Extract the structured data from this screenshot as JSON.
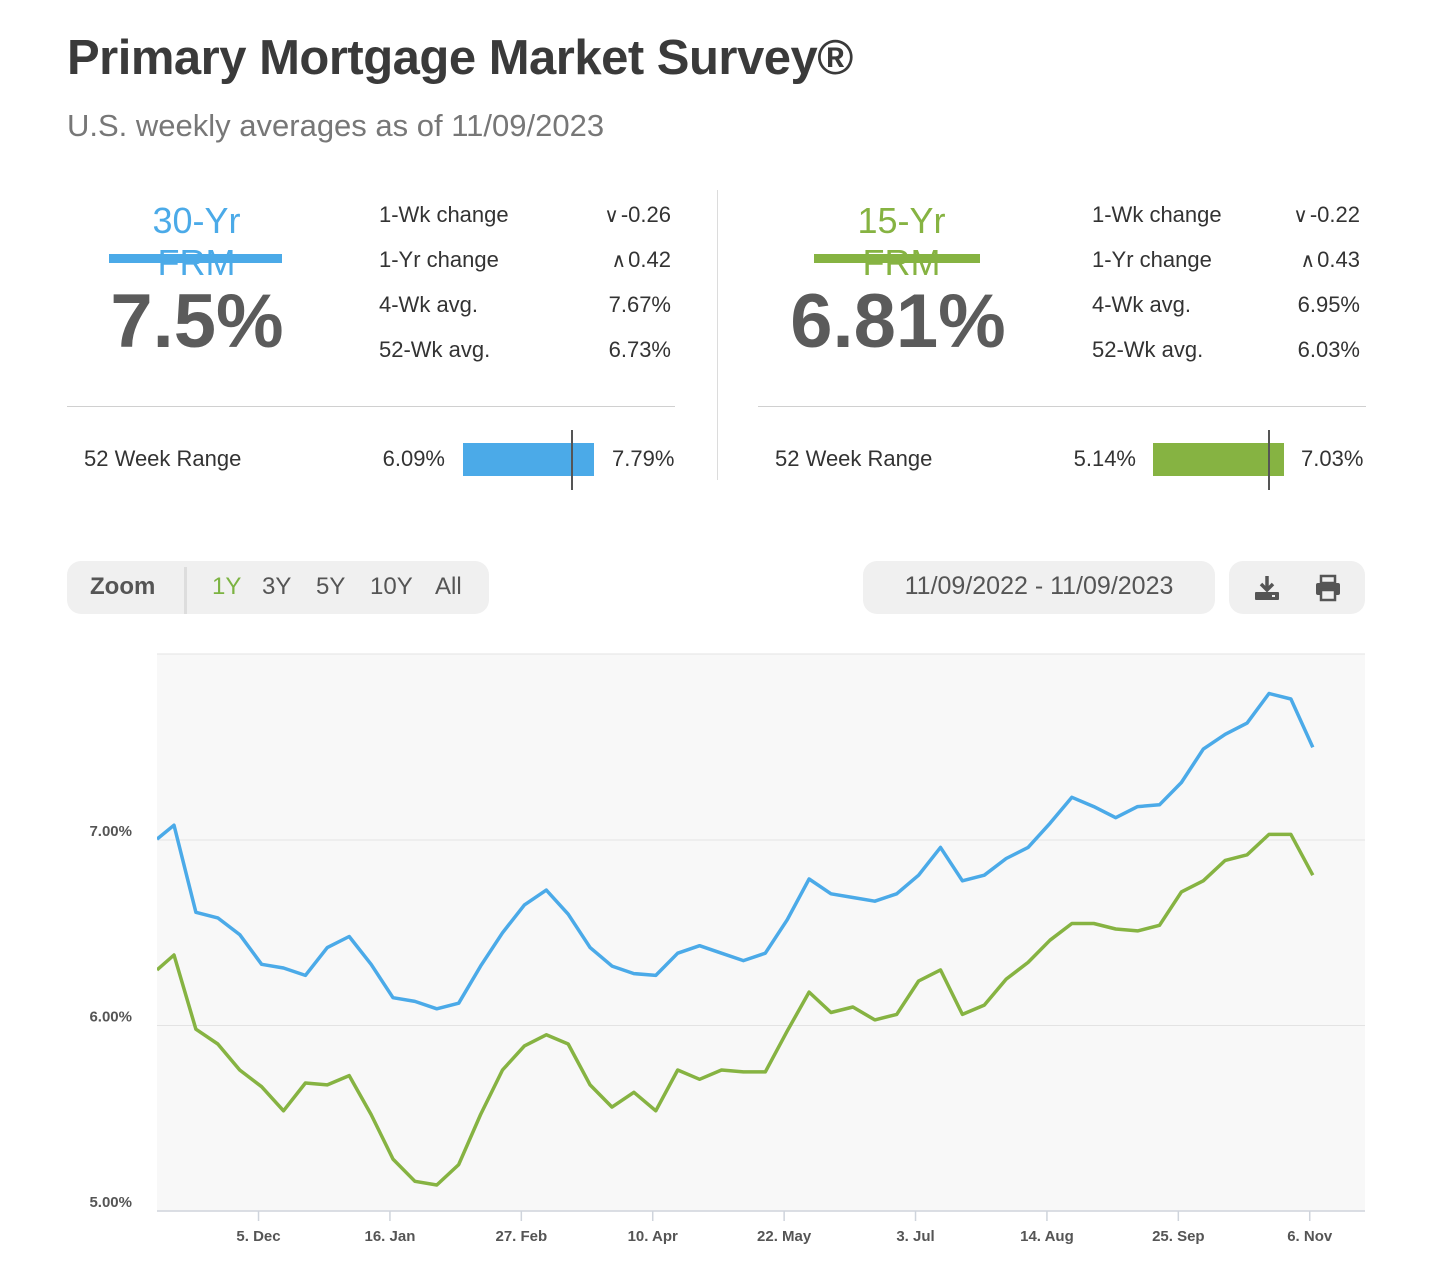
{
  "header": {
    "title": "Primary Mortgage Market Survey®",
    "subtitle": "U.S. weekly averages as of 11/09/2023"
  },
  "colors": {
    "frm30": "#4baae8",
    "frm15": "#86b342",
    "grid": "#e3e3e3",
    "plot_bg": "#f8f8f8"
  },
  "frm30": {
    "name": "30-Yr FRM",
    "rate": "7.5%",
    "stats": [
      {
        "label": "1-Wk change",
        "value": "-0.26",
        "direction": "down"
      },
      {
        "label": "1-Yr change",
        "value": "0.42",
        "direction": "up"
      },
      {
        "label": "4-Wk avg.",
        "value": "7.67%"
      },
      {
        "label": "52-Wk avg.",
        "value": "6.73%"
      }
    ],
    "range_label": "52 Week Range",
    "range_min": "6.09%",
    "range_max": "7.79%",
    "range_current": 7.5,
    "range_lo": 6.09,
    "range_hi": 7.79
  },
  "frm15": {
    "name": "15-Yr FRM",
    "rate": "6.81%",
    "stats": [
      {
        "label": "1-Wk change",
        "value": "-0.22",
        "direction": "down"
      },
      {
        "label": "1-Yr change",
        "value": "0.43",
        "direction": "up"
      },
      {
        "label": "4-Wk avg.",
        "value": "6.95%"
      },
      {
        "label": "52-Wk avg.",
        "value": "6.03%"
      }
    ],
    "range_label": "52 Week Range",
    "range_min": "5.14%",
    "range_max": "7.03%",
    "range_current": 6.81,
    "range_lo": 5.14,
    "range_hi": 7.03
  },
  "controls": {
    "zoom_label": "Zoom",
    "zoom_options": [
      "1Y",
      "3Y",
      "5Y",
      "10Y",
      "All"
    ],
    "zoom_active": "1Y",
    "date_range": "11/09/2022 - 11/09/2023",
    "download_icon": "download-icon",
    "print_icon": "print-icon"
  },
  "chart_data": {
    "type": "line",
    "title": "",
    "xlabel": "",
    "ylabel": "",
    "ylim": [
      5.0,
      8.0
    ],
    "yticks": [
      "5.00%",
      "6.00%",
      "7.00%"
    ],
    "ytick_values": [
      5.0,
      6.0,
      7.0
    ],
    "xticks": [
      "5. Dec",
      "16. Jan",
      "27. Feb",
      "10. Apr",
      "22. May",
      "3. Jul",
      "14. Aug",
      "25. Sep",
      "6. Nov"
    ],
    "xtick_index": [
      3.86,
      9.86,
      15.86,
      21.86,
      27.86,
      33.86,
      39.86,
      45.86,
      51.86
    ],
    "grid": true,
    "legend": "none",
    "series": [
      {
        "key": "frm30",
        "values": [
          7.08,
          6.61,
          6.58,
          6.49,
          6.33,
          6.31,
          6.27,
          6.42,
          6.48,
          6.33,
          6.15,
          6.13,
          6.09,
          6.12,
          6.32,
          6.5,
          6.65,
          6.73,
          6.6,
          6.42,
          6.32,
          6.28,
          6.27,
          6.39,
          6.43,
          6.39,
          6.35,
          6.39,
          6.57,
          6.79,
          6.71,
          6.69,
          6.67,
          6.71,
          6.81,
          6.96,
          6.78,
          6.81,
          6.9,
          6.96,
          7.09,
          7.23,
          7.18,
          7.12,
          7.18,
          7.19,
          7.31,
          7.49,
          7.57,
          7.63,
          7.79,
          7.76,
          7.5
        ]
      },
      {
        "key": "frm15",
        "values": [
          6.38,
          5.98,
          5.9,
          5.76,
          5.67,
          5.54,
          5.69,
          5.68,
          5.73,
          5.52,
          5.28,
          5.16,
          5.14,
          5.25,
          5.52,
          5.76,
          5.89,
          5.95,
          5.9,
          5.68,
          5.56,
          5.64,
          5.54,
          5.76,
          5.71,
          5.76,
          5.75,
          5.75,
          5.97,
          6.18,
          6.07,
          6.1,
          6.03,
          6.06,
          6.24,
          6.3,
          6.06,
          6.11,
          6.25,
          6.34,
          6.46,
          6.55,
          6.55,
          6.52,
          6.51,
          6.54,
          6.72,
          6.78,
          6.89,
          6.92,
          7.03,
          7.03,
          6.81
        ]
      }
    ]
  }
}
